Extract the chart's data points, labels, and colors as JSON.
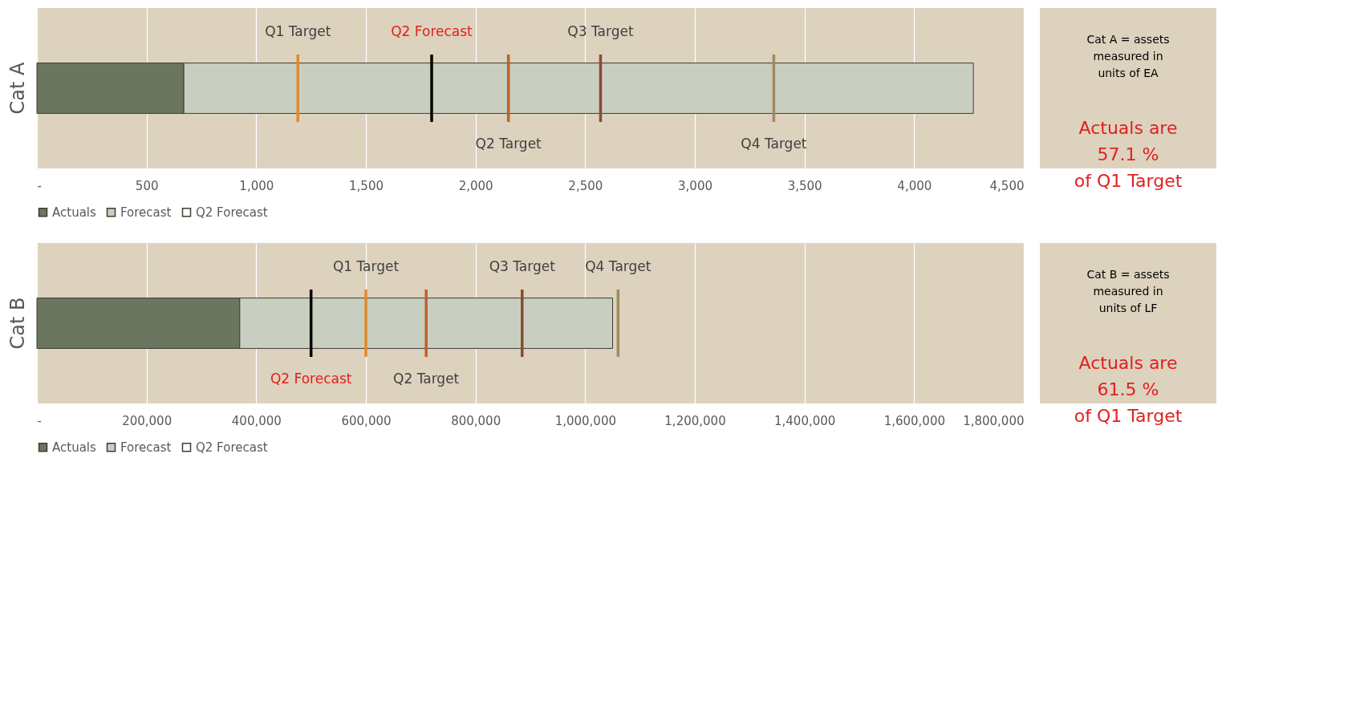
{
  "chart_data": [
    {
      "type": "bar",
      "orientation": "horizontal",
      "stacked": true,
      "categories": [
        "Cat A"
      ],
      "series": [
        {
          "name": "Actuals",
          "color": "#6b7560",
          "values": [
            670
          ]
        },
        {
          "name": "Forecast",
          "color": "#c9cfc0",
          "values": [
            3600
          ]
        }
      ],
      "xlim": [
        0,
        4500
      ],
      "xticks": [
        {
          "value": 0,
          "label": "-"
        },
        500,
        {
          "value": 1000,
          "label": "1,000"
        },
        {
          "value": 1500,
          "label": "1,500"
        },
        {
          "value": 2000,
          "label": "2,000"
        },
        {
          "value": 2500,
          "label": "2,500"
        },
        {
          "value": 3000,
          "label": "3,000"
        },
        {
          "value": 3500,
          "label": "3,500"
        },
        {
          "value": 4000,
          "label": "4,000"
        },
        {
          "value": 4500,
          "label": "4,500"
        }
      ],
      "ref_lines": [
        {
          "axis": "x",
          "value": 1190,
          "label": "Q1 Target",
          "color": "#e08a2a"
        },
        {
          "axis": "x",
          "value": 2150,
          "label": "Q2 Target",
          "color": "#c0602a"
        },
        {
          "axis": "x",
          "value": 1800,
          "label": "Q2 Forecast",
          "color": "#000000",
          "line_style": "solid"
        },
        {
          "axis": "x",
          "value": 3360,
          "label": "Q4 Target",
          "color": "#a08a60"
        },
        {
          "axis": "x",
          "value": 2570,
          "label": "Q3 Target",
          "color": "#8b4a30"
        }
      ],
      "annotations": [
        "Cat A = assets measured in units of EA",
        "Actuals are 57.1 % of Q1 Target"
      ],
      "grid": "x",
      "legend": "bottom"
    },
    {
      "type": "bar",
      "orientation": "horizontal",
      "stacked": true,
      "categories": [
        "Cat B"
      ],
      "series": [
        {
          "name": "Actuals",
          "color": "#6b7560",
          "values": [
            370000
          ]
        },
        {
          "name": "Forecast",
          "color": "#c9cfc0",
          "values": [
            680000
          ]
        }
      ],
      "xlim": [
        0,
        1800000
      ],
      "xticks": [
        {
          "value": 0,
          "label": "-"
        },
        {
          "value": 200000,
          "label": "200,000"
        },
        {
          "value": 400000,
          "label": "400,000"
        },
        {
          "value": 600000,
          "label": "600,000"
        },
        {
          "value": 800000,
          "label": "800,000"
        },
        {
          "value": 1000000,
          "label": "1,000,000"
        },
        {
          "value": 1200000,
          "label": "1,200,000"
        },
        {
          "value": 1400000,
          "label": "1,400,000"
        },
        {
          "value": 1600000,
          "label": "1,600,000"
        },
        {
          "value": 1800000,
          "label": "1,800,000"
        }
      ],
      "ref_lines": [
        {
          "axis": "x",
          "value": 600000,
          "label": "Q1 Target",
          "color": "#e08a2a"
        },
        {
          "axis": "x",
          "value": 500000,
          "label": "Q2 Forecast",
          "color": "#000000",
          "line_style": "solid"
        },
        {
          "axis": "x",
          "value": 885000,
          "label": "Q3 Target",
          "color": "#8b4a30"
        },
        {
          "axis": "x",
          "value": 710000,
          "label": "Q2 Target",
          "color": "#c0602a"
        },
        {
          "axis": "x",
          "value": 1060000,
          "label": "Q4 Target",
          "color": "#a08a60"
        }
      ],
      "annotations": [
        "Cat B = assets measured in units of LF",
        "Actuals are 61.5 % of Q1 Target"
      ],
      "grid": "x",
      "legend": "bottom"
    }
  ]
}
